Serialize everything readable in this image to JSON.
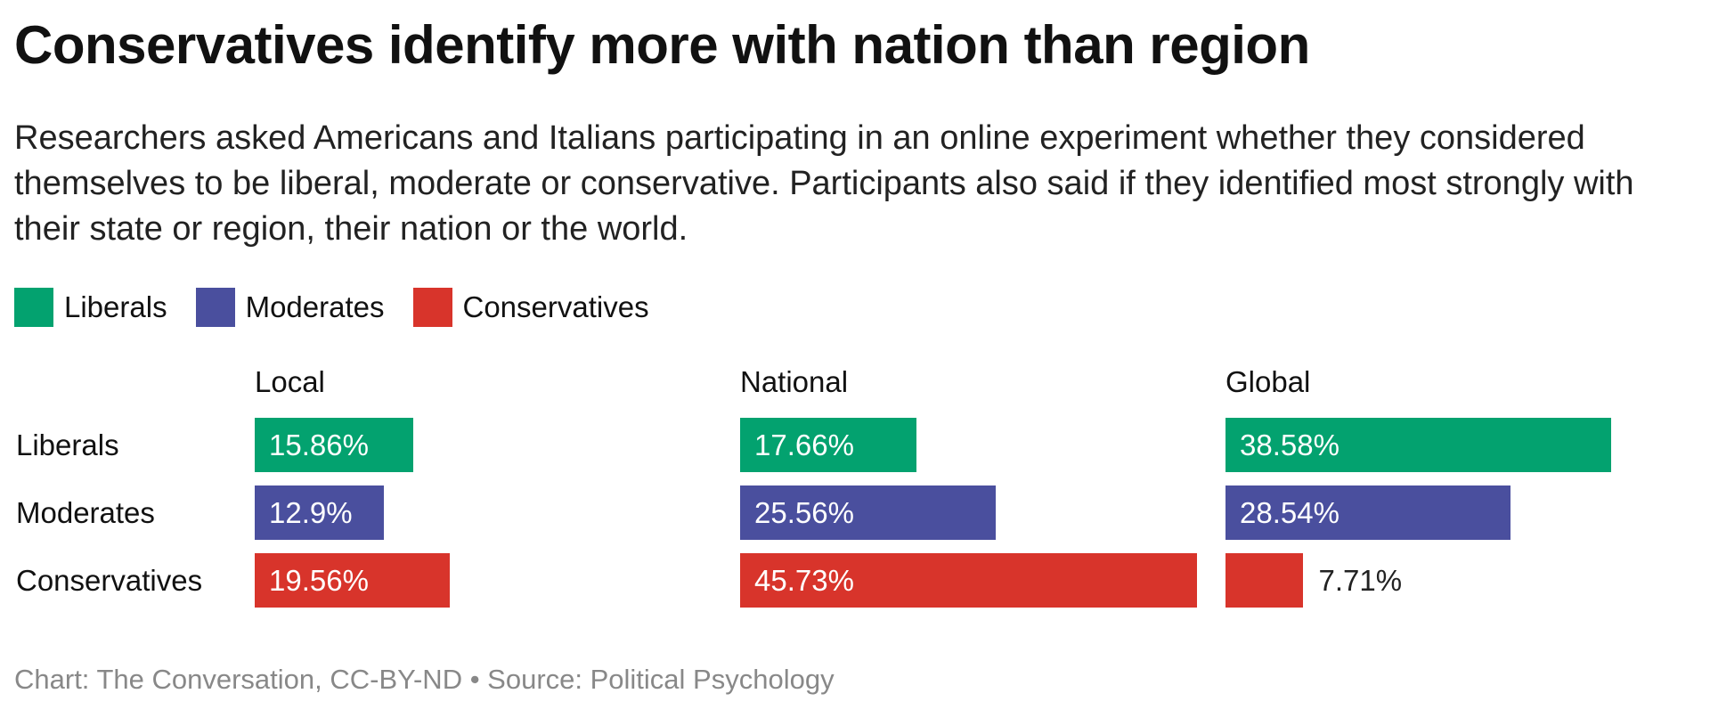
{
  "chart_data": {
    "type": "bar",
    "title": "Conservatives identify more with nation than region",
    "subtitle": "Researchers asked Americans and Italians participating in an online experiment whether they considered themselves to be liberal, moderate or conservative. Participants also said if they identified most strongly with their state or region, their nation or the world.",
    "legend": [
      "Liberals",
      "Moderates",
      "Conservatives"
    ],
    "legend_placement": "top-left",
    "colors": {
      "Liberals": "#03a26f",
      "Moderates": "#4a4f9e",
      "Conservatives": "#d8342b"
    },
    "panels": [
      "Local",
      "National",
      "Global"
    ],
    "categories": [
      "Liberals",
      "Moderates",
      "Conservatives"
    ],
    "series": [
      {
        "name": "Local",
        "values": [
          15.86,
          12.9,
          19.56
        ],
        "labels": [
          "15.86%",
          "12.9%",
          "19.56%"
        ]
      },
      {
        "name": "National",
        "values": [
          17.66,
          25.56,
          45.73
        ],
        "labels": [
          "17.66%",
          "25.56%",
          "45.73%"
        ]
      },
      {
        "name": "Global",
        "values": [
          38.58,
          28.54,
          7.71
        ],
        "labels": [
          "38.58%",
          "28.54%",
          "7.71%"
        ]
      }
    ],
    "grid": false,
    "footer": "Chart: The Conversation, CC-BY-ND • Source: Political Psychology"
  }
}
